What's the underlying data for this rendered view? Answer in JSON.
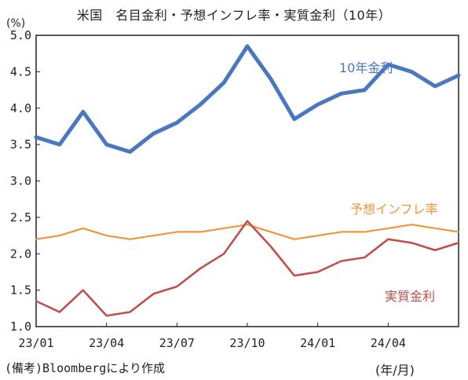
{
  "chart_data": {
    "type": "line",
    "title": "米国　名目金利・予想インフレ率・実質金利（10年）",
    "unit_label": "(%)",
    "source": "(備考)Bloombergにより作成",
    "xunit": "(年/月)",
    "xlim": [
      "2023-01",
      "2024-07"
    ],
    "ylim": [
      1.0,
      5.0
    ],
    "yticks": [
      "1.0",
      "1.5",
      "2.0",
      "2.5",
      "3.0",
      "3.5",
      "4.0",
      "4.5",
      "5.0"
    ],
    "xticks": [
      "23/01",
      "23/04",
      "23/07",
      "23/10",
      "24/01",
      "24/04"
    ],
    "grid": false,
    "x": [
      "2023-01",
      "2023-02",
      "2023-03",
      "2023-04",
      "2023-05",
      "2023-06",
      "2023-07",
      "2023-08",
      "2023-09",
      "2023-10",
      "2023-11",
      "2023-12",
      "2024-01",
      "2024-02",
      "2024-03",
      "2024-04",
      "2024-05",
      "2024-06",
      "2024-07"
    ],
    "series": [
      {
        "name": "10年金利",
        "color": "#4a78c0",
        "values": [
          3.6,
          3.5,
          3.95,
          3.5,
          3.4,
          3.65,
          3.8,
          4.05,
          4.35,
          4.85,
          4.4,
          3.85,
          4.05,
          4.2,
          4.25,
          4.6,
          4.5,
          4.3,
          4.45
        ]
      },
      {
        "name": "予想インフレ率",
        "color": "#f0953a",
        "values": [
          2.2,
          2.25,
          2.35,
          2.25,
          2.2,
          2.25,
          2.3,
          2.3,
          2.35,
          2.4,
          2.3,
          2.2,
          2.25,
          2.3,
          2.3,
          2.35,
          2.4,
          2.35,
          2.3
        ]
      },
      {
        "name": "実質金利",
        "color": "#c0504d",
        "values": [
          1.35,
          1.2,
          1.5,
          1.15,
          1.2,
          1.45,
          1.55,
          1.8,
          2.0,
          2.45,
          2.1,
          1.7,
          1.75,
          1.9,
          1.95,
          2.2,
          2.15,
          2.05,
          2.15
        ]
      }
    ]
  }
}
